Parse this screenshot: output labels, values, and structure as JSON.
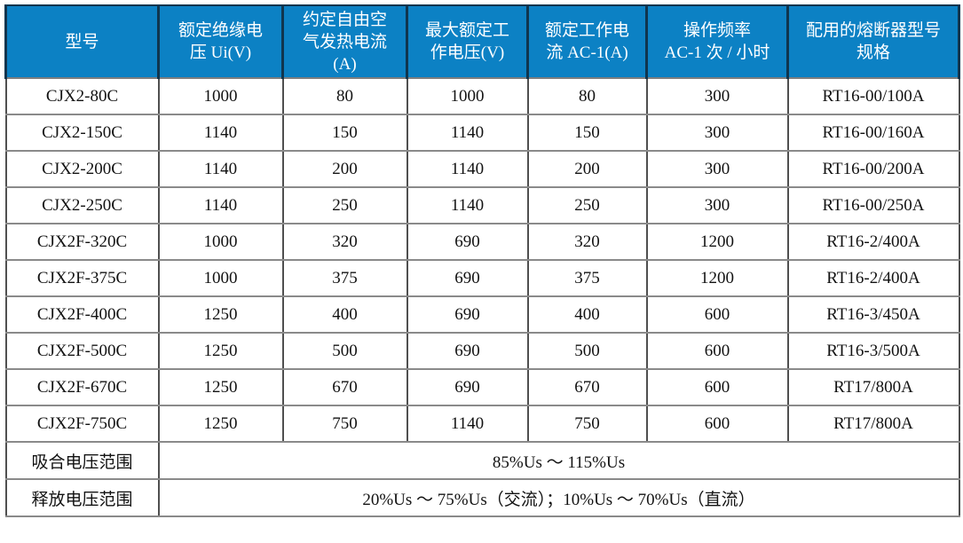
{
  "colors": {
    "header_bg": "#0c81c4",
    "header_text": "#ffffff",
    "header_divider": "#10354e",
    "grid_line": "#8a8a8a",
    "grid_line_vertical": "#4f4f4f",
    "outer_border": "#2e2e2e",
    "body_text": "#121212",
    "page_bg": "#ffffff"
  },
  "table": {
    "columns": [
      {
        "label_lines": [
          "型号"
        ]
      },
      {
        "label_lines": [
          "额定绝缘电",
          "压 Ui(V)"
        ]
      },
      {
        "label_lines": [
          "约定自由空",
          "气发热电流",
          "(A)"
        ]
      },
      {
        "label_lines": [
          "最大额定工",
          "作电压(V)"
        ]
      },
      {
        "label_lines": [
          "额定工作电",
          "流 AC-1(A)"
        ]
      },
      {
        "label_lines": [
          "操作频率",
          "AC-1 次 / 小时"
        ]
      },
      {
        "label_lines": [
          "配用的熔断器型号",
          "规格"
        ]
      }
    ],
    "rows": [
      [
        "CJX2-80C",
        "1000",
        "80",
        "1000",
        "80",
        "300",
        "RT16-00/100A"
      ],
      [
        "CJX2-150C",
        "1140",
        "150",
        "1140",
        "150",
        "300",
        "RT16-00/160A"
      ],
      [
        "CJX2-200C",
        "1140",
        "200",
        "1140",
        "200",
        "300",
        "RT16-00/200A"
      ],
      [
        "CJX2-250C",
        "1140",
        "250",
        "1140",
        "250",
        "300",
        "RT16-00/250A"
      ],
      [
        "CJX2F-320C",
        "1000",
        "320",
        "690",
        "320",
        "1200",
        "RT16-2/400A"
      ],
      [
        "CJX2F-375C",
        "1000",
        "375",
        "690",
        "375",
        "1200",
        "RT16-2/400A"
      ],
      [
        "CJX2F-400C",
        "1250",
        "400",
        "690",
        "400",
        "600",
        "RT16-3/450A"
      ],
      [
        "CJX2F-500C",
        "1250",
        "500",
        "690",
        "500",
        "600",
        "RT16-3/500A"
      ],
      [
        "CJX2F-670C",
        "1250",
        "670",
        "690",
        "670",
        "600",
        "RT17/800A"
      ],
      [
        "CJX2F-750C",
        "1250",
        "750",
        "1140",
        "750",
        "600",
        "RT17/800A"
      ]
    ],
    "footer_rows": [
      {
        "label": "吸合电压范围",
        "value": "85%Us ～ 115%Us"
      },
      {
        "label": "释放电压范围",
        "value": "20%Us ～ 75%Us（交流）；10%Us ～ 70%Us（直流）"
      }
    ]
  }
}
